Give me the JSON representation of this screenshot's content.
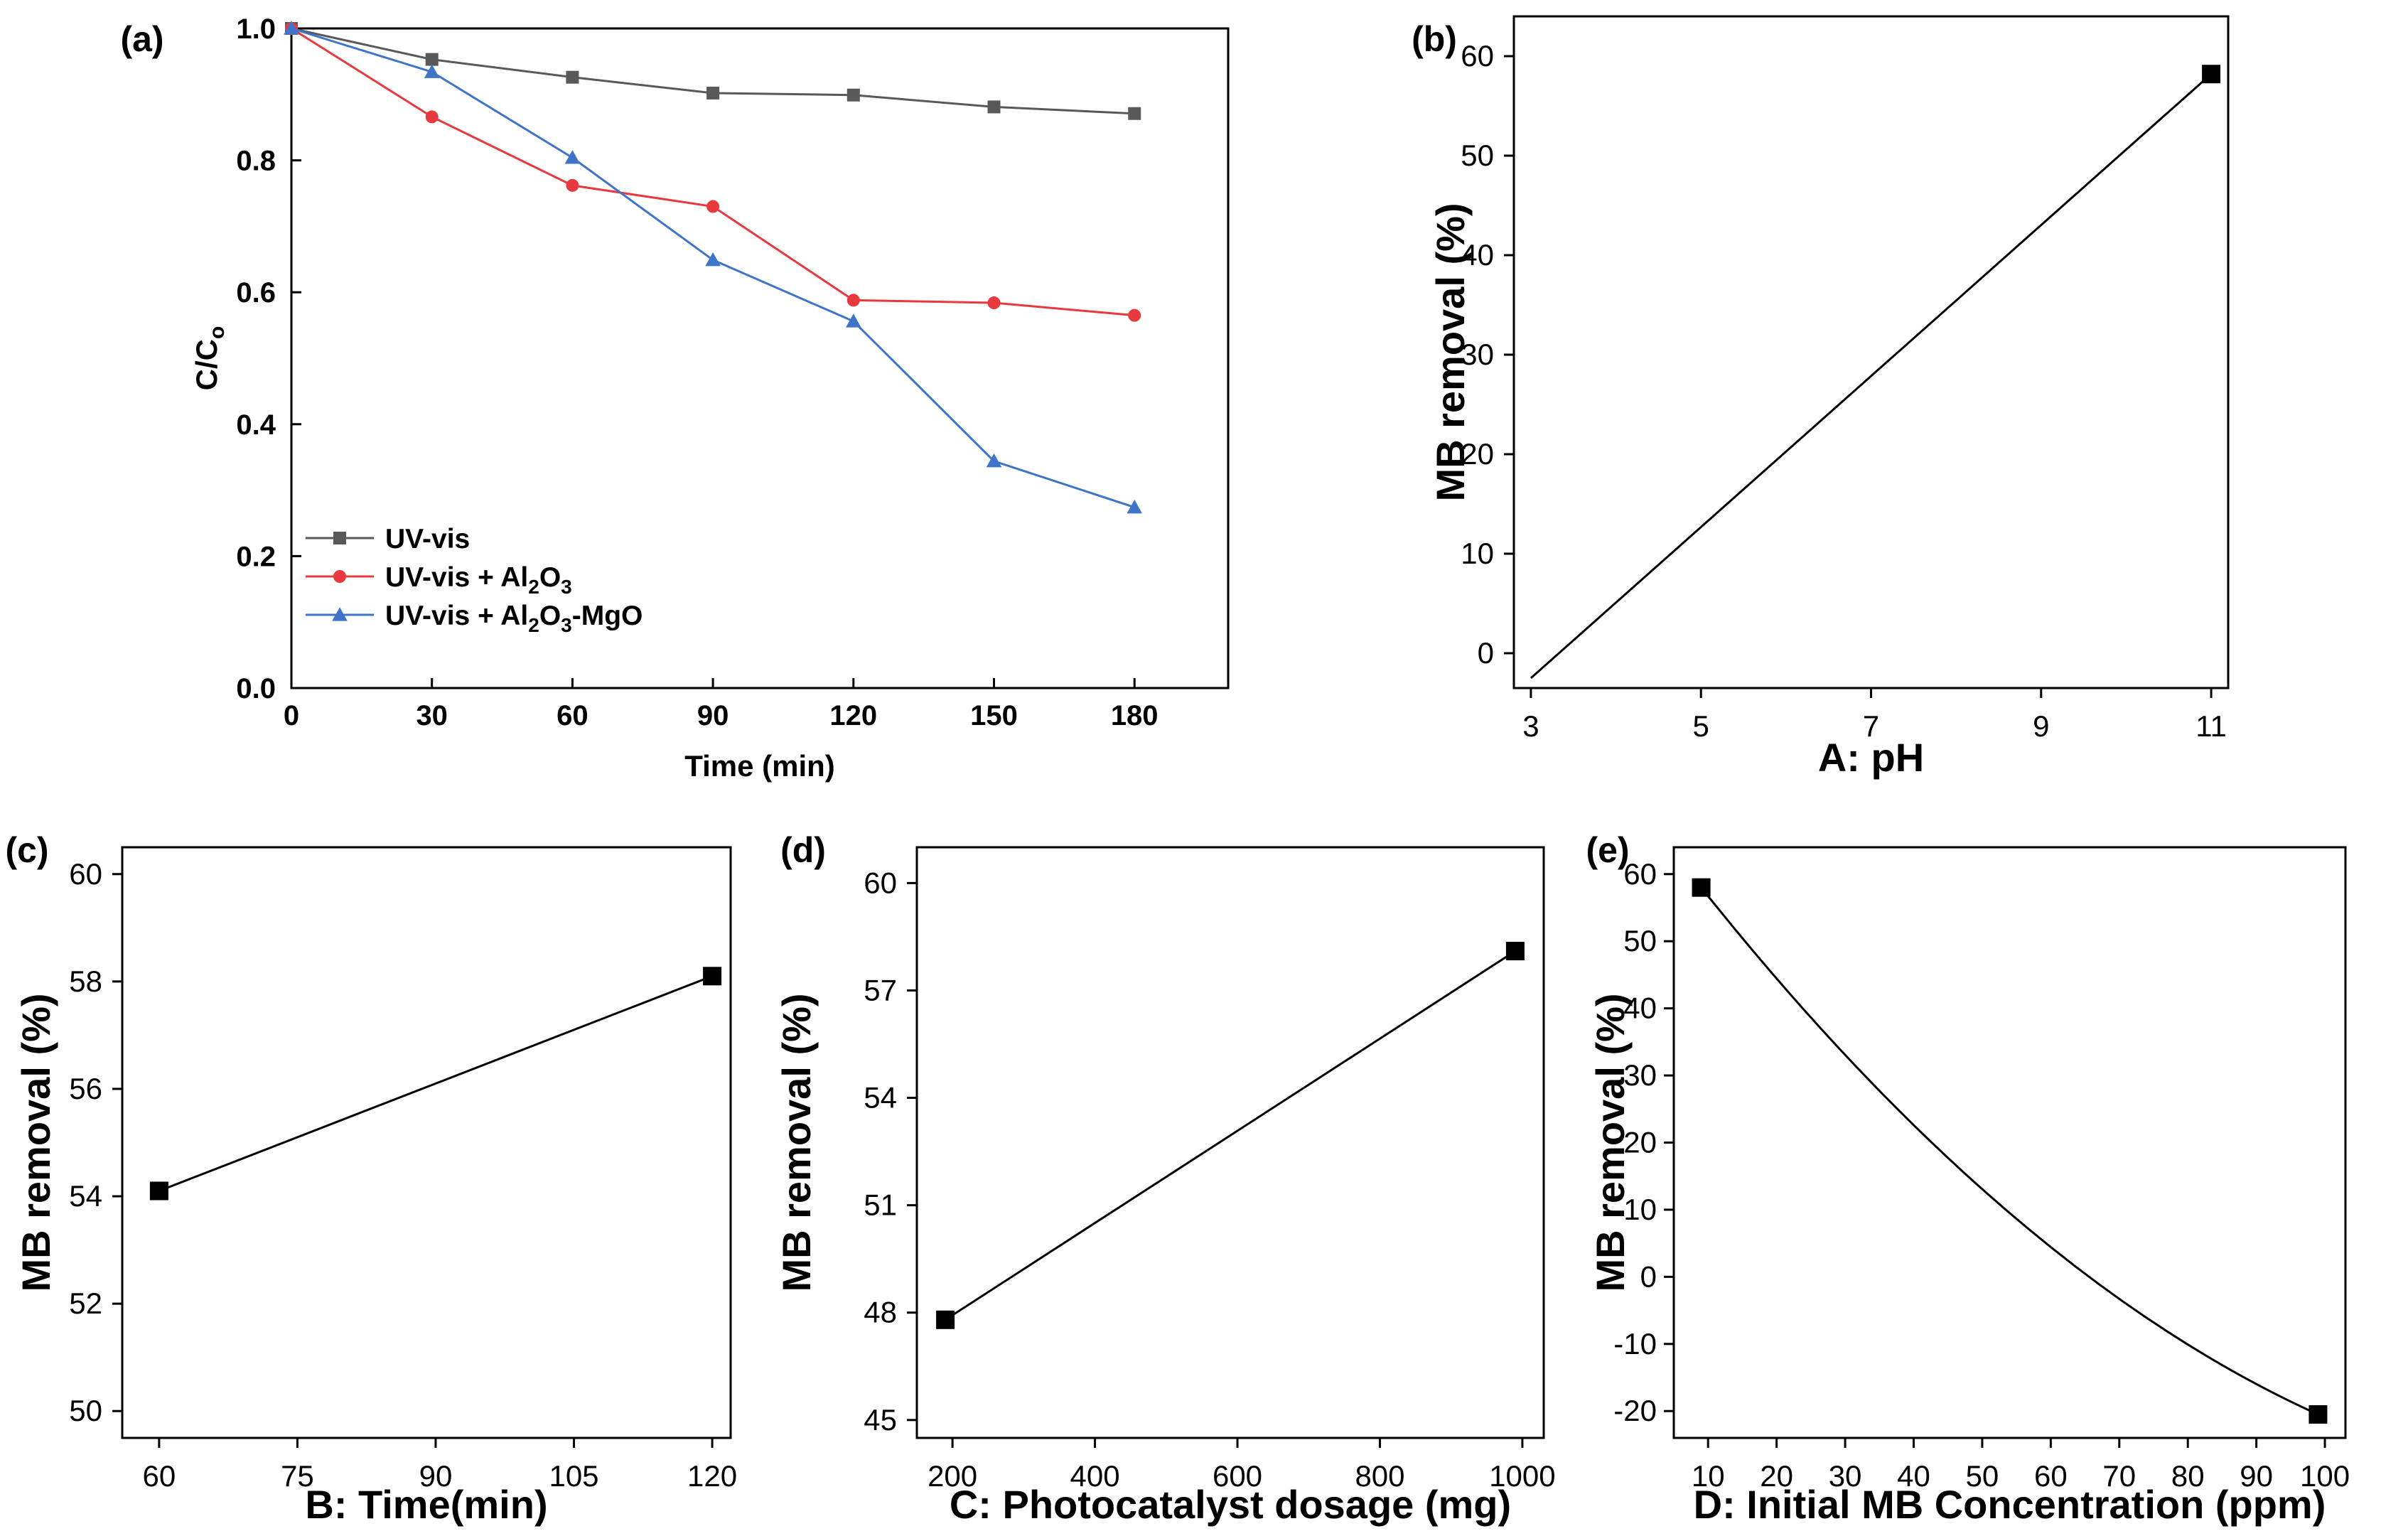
{
  "chart_data": [
    {
      "type": "line",
      "panel_label": "(a)",
      "xlabel": "Time (min)",
      "ylabel": {
        "main": "C/C",
        "sub": "o"
      },
      "xlim": [
        0,
        200
      ],
      "ylim": [
        0,
        1
      ],
      "x_ticks": [
        "0",
        "30",
        "60",
        "90",
        "120",
        "150",
        "180"
      ],
      "y_ticks": [
        "0.0",
        "0.2",
        "0.4",
        "0.6",
        "0.8",
        "1.0"
      ],
      "x": [
        0,
        30,
        60,
        90,
        120,
        150,
        180
      ],
      "series": [
        {
          "name": "UV-vis",
          "label_parts": [
            "UV-vis"
          ],
          "color": "#595959",
          "marker": "square",
          "values": [
            1.0,
            0.953,
            0.926,
            0.902,
            0.899,
            0.881,
            0.871
          ]
        },
        {
          "name": "UV-vis + Al2O3",
          "label_parts": [
            "UV-vis + Al",
            "2",
            "O",
            "3"
          ],
          "color": "#e8393f",
          "marker": "circle",
          "values": [
            1.0,
            0.866,
            0.762,
            0.73,
            0.588,
            0.584,
            0.565
          ]
        },
        {
          "name": "UV-vis + Al2O3-MgO",
          "label_parts": [
            "UV-vis + Al",
            "2",
            "O",
            "3",
            "-MgO"
          ],
          "color": "#3f74c8",
          "marker": "triangle",
          "values": [
            1.0,
            0.934,
            0.804,
            0.649,
            0.556,
            0.344,
            0.274
          ]
        }
      ],
      "legend": "bottom-left"
    },
    {
      "type": "line",
      "panel_label": "(b)",
      "xlabel": "A: pH",
      "ylabel": "MB removal (%)",
      "xlim": [
        2.8,
        11.2
      ],
      "ylim": [
        -3.5,
        64
      ],
      "x_ticks": [
        "3",
        "5",
        "7",
        "9",
        "11"
      ],
      "y_ticks": [
        "0",
        "10",
        "20",
        "30",
        "40",
        "50",
        "60"
      ],
      "curve": "linear",
      "points": [
        {
          "x": 3,
          "y": -2.5,
          "marker": false
        },
        {
          "x": 11,
          "y": 58.2,
          "marker": true
        }
      ]
    },
    {
      "type": "line",
      "panel_label": "(c)",
      "xlabel": "B: Time(min)",
      "ylabel": "MB removal (%)",
      "xlim": [
        56,
        122
      ],
      "ylim": [
        49.5,
        60.5
      ],
      "x_ticks": [
        "60",
        "75",
        "90",
        "105",
        "120"
      ],
      "y_ticks": [
        "50",
        "52",
        "54",
        "56",
        "58",
        "60"
      ],
      "curve": "linear",
      "points": [
        {
          "x": 60,
          "y": 54.1,
          "marker": true
        },
        {
          "x": 120,
          "y": 58.1,
          "marker": true
        }
      ]
    },
    {
      "type": "line",
      "panel_label": "(d)",
      "xlabel": "C: Photocatalyst dosage (mg)",
      "ylabel": "MB removal (%)",
      "xlim": [
        150,
        1030
      ],
      "ylim": [
        44.5,
        61
      ],
      "x_ticks": [
        "200",
        "400",
        "600",
        "800",
        "1000"
      ],
      "y_ticks": [
        "45",
        "48",
        "51",
        "54",
        "57",
        "60"
      ],
      "curve": "linear",
      "points": [
        {
          "x": 190,
          "y": 47.8,
          "marker": true
        },
        {
          "x": 990,
          "y": 58.1,
          "marker": true
        }
      ]
    },
    {
      "type": "line",
      "panel_label": "(e)",
      "xlabel": "D: Initial MB Concentration (ppm)",
      "ylabel": "MB removal (%)",
      "xlim": [
        5,
        103
      ],
      "ylim": [
        -24,
        64
      ],
      "x_ticks": [
        "10",
        "20",
        "30",
        "40",
        "50",
        "60",
        "70",
        "80",
        "90",
        "100"
      ],
      "y_ticks": [
        "-20",
        "-10",
        "0",
        "10",
        "20",
        "30",
        "40",
        "50",
        "60"
      ],
      "curve": "quadratic",
      "points": [
        {
          "x": 9,
          "y": 58.0,
          "marker": true
        },
        {
          "x": 99,
          "y": -20.5,
          "marker": true
        }
      ],
      "curve_mid": {
        "x": 54,
        "y": 9.5
      }
    }
  ]
}
